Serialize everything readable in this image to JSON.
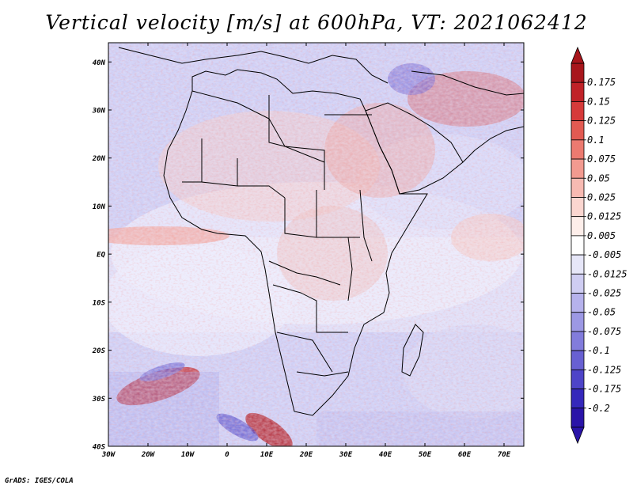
{
  "title": "Vertical velocity [m/s] at 600hPa, VT: 2021062412",
  "footer": "GrADS: IGES/COLA",
  "map": {
    "lat_labels": [
      "40N",
      "30N",
      "20N",
      "10N",
      "EQ",
      "10S",
      "20S",
      "30S",
      "40S"
    ],
    "lon_labels": [
      "30W",
      "20W",
      "10W",
      "0",
      "10E",
      "20E",
      "30E",
      "40E",
      "50E",
      "60E",
      "70E"
    ],
    "lon_range": [
      -30,
      75
    ],
    "lat_range": [
      -40,
      44
    ]
  },
  "colorbar": {
    "labels": [
      "0.175",
      "0.15",
      "0.125",
      "0.1",
      "0.075",
      "0.05",
      "0.025",
      "0.0125",
      "0.005",
      "-0.005",
      "-0.0125",
      "-0.025",
      "-0.05",
      "-0.075",
      "-0.1",
      "-0.125",
      "-0.175",
      "-0.2"
    ],
    "colors": [
      "#a8161c",
      "#c02228",
      "#d63a3a",
      "#e25a52",
      "#ec7a70",
      "#f29a90",
      "#f7bab2",
      "#fbd6d0",
      "#fdeeea",
      "#ffffff",
      "#e6e6f8",
      "#cfcdf2",
      "#b6b2ec",
      "#9c98e4",
      "#827cdc",
      "#6860d2",
      "#4e44c8",
      "#3528bb",
      "#2a14a8"
    ]
  }
}
